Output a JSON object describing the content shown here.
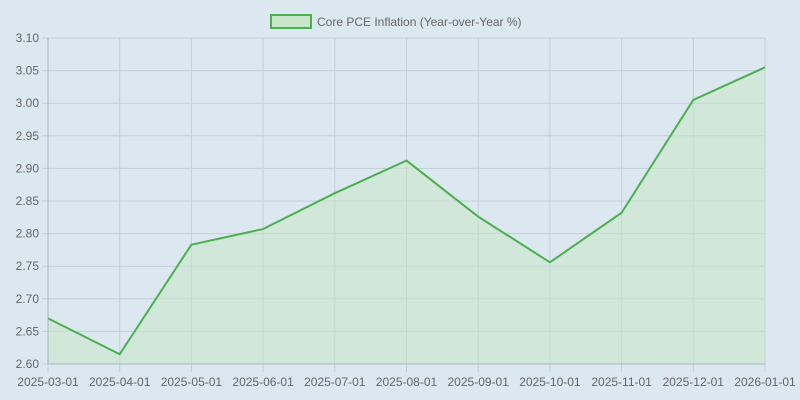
{
  "chart_data": {
    "type": "area",
    "legend": {
      "label": "Core PCE Inflation (Year-over-Year %)",
      "position": "top-center"
    },
    "x": [
      "2025-03-01",
      "2025-04-01",
      "2025-05-01",
      "2025-06-01",
      "2025-07-01",
      "2025-08-01",
      "2025-09-01",
      "2025-10-01",
      "2025-11-01",
      "2025-12-01",
      "2026-01-01"
    ],
    "series": [
      {
        "name": "Core PCE Inflation (Year-over-Year %)",
        "values": [
          2.67,
          2.615,
          2.783,
          2.807,
          2.862,
          2.912,
          2.826,
          2.756,
          2.832,
          3.005,
          3.055
        ]
      }
    ],
    "y_ticks": [
      "2.60",
      "2.65",
      "2.70",
      "2.75",
      "2.80",
      "2.85",
      "2.90",
      "2.95",
      "3.00",
      "3.05",
      "3.10"
    ],
    "ylim": [
      2.6,
      3.1
    ],
    "grid": true,
    "colors": {
      "line": "#4caf50",
      "fill": "#c8e6c9",
      "grid": "#c3cfd6",
      "axis": "#a9b4ba",
      "text": "#666666",
      "background": "#dbe8f0"
    }
  }
}
